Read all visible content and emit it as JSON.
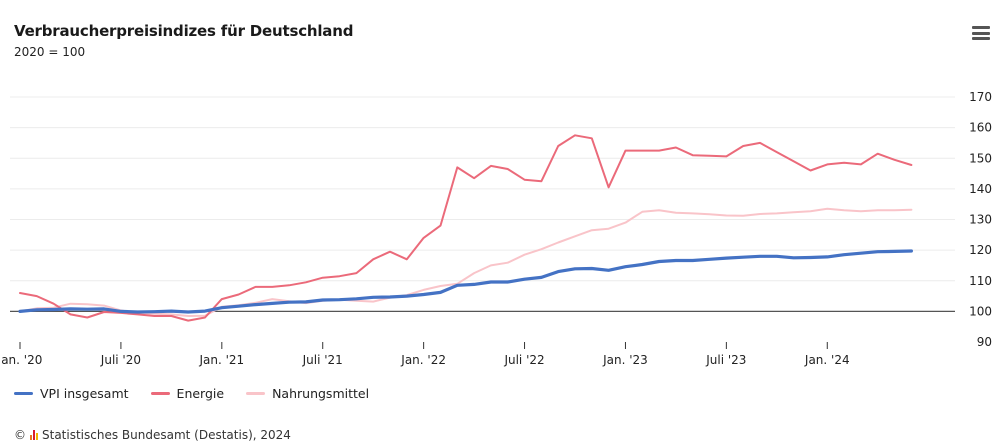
{
  "title": "Verbraucherpreisindizes für Deutschland",
  "subtitle": "2020 = 100",
  "menu_icon": "hamburger-menu-icon",
  "credits": {
    "copyright": "©",
    "logo_icon": "destatis-logo-icon",
    "text": "Statistisches Bundesamt (Destatis), 2024"
  },
  "chart_data": {
    "type": "line",
    "x_start": "2020-01",
    "x_end": "2024-08",
    "x_ticks": [
      {
        "month": "2020-01",
        "label": "Jan. '20"
      },
      {
        "month": "2020-07",
        "label": "Juli '20"
      },
      {
        "month": "2021-01",
        "label": "Jan. '21"
      },
      {
        "month": "2021-07",
        "label": "Juli '21"
      },
      {
        "month": "2022-01",
        "label": "Jan. '22"
      },
      {
        "month": "2022-07",
        "label": "Juli '22"
      },
      {
        "month": "2023-01",
        "label": "Jan. '23"
      },
      {
        "month": "2023-07",
        "label": "Juli '23"
      },
      {
        "month": "2024-01",
        "label": "Jan. '24"
      }
    ],
    "y_ticks": [
      90,
      100,
      110,
      120,
      130,
      140,
      150,
      160,
      170
    ],
    "ylim": [
      90,
      170
    ],
    "y_axis_side": "right",
    "grid": true,
    "reference_line": 100,
    "legend_position": "bottom-left",
    "series": [
      {
        "name": "VPI insgesamt",
        "color": "#4472c4",
        "values": [
          100.0,
          100.5,
          100.6,
          100.8,
          100.7,
          100.8,
          100.0,
          99.8,
          99.9,
          100.1,
          99.8,
          100.1,
          101.2,
          101.7,
          102.2,
          102.6,
          103.0,
          103.1,
          103.7,
          103.8,
          104.1,
          104.6,
          104.7,
          105.0,
          105.5,
          106.2,
          108.5,
          108.8,
          109.6,
          109.6,
          110.5,
          111.1,
          113.0,
          113.9,
          114.0,
          113.4,
          114.6,
          115.3,
          116.3,
          116.6,
          116.6,
          117.0,
          117.4,
          117.7,
          118.0,
          118.0,
          117.5,
          117.6,
          117.8,
          118.5,
          119.0,
          119.5,
          119.6,
          119.7
        ]
      },
      {
        "name": "Energie",
        "color": "#eb6a7a",
        "values": [
          106.0,
          105.0,
          102.5,
          99.0,
          98.0,
          99.8,
          99.5,
          99.0,
          98.5,
          98.5,
          97.0,
          98.0,
          104.0,
          105.5,
          108.0,
          108.0,
          108.5,
          109.5,
          111.0,
          111.5,
          112.5,
          117.0,
          119.5,
          117.0,
          124.0,
          128.0,
          147.0,
          143.5,
          147.5,
          146.5,
          143.0,
          142.5,
          154.0,
          157.5,
          156.5,
          140.5,
          152.5,
          152.5,
          152.5,
          153.5,
          151.0,
          150.8,
          150.6,
          154.0,
          155.0,
          152.0,
          149.0,
          146.0,
          148.0,
          148.5,
          148.0,
          151.5,
          149.5,
          147.8
        ]
      },
      {
        "name": "Nahrungsmittel",
        "color": "#f9c4c9",
        "values": [
          100.0,
          101.0,
          101.2,
          102.5,
          102.3,
          101.9,
          100.3,
          99.5,
          99.2,
          99.0,
          98.5,
          98.6,
          101.5,
          102.0,
          102.8,
          104.0,
          103.3,
          102.7,
          103.5,
          103.8,
          103.5,
          103.2,
          104.5,
          105.3,
          107.0,
          108.3,
          109.0,
          112.5,
          115.0,
          115.9,
          118.5,
          120.3,
          122.5,
          124.5,
          126.5,
          127.0,
          129.0,
          132.5,
          133.0,
          132.2,
          132.0,
          131.7,
          131.3,
          131.2,
          131.8,
          132.0,
          132.4,
          132.7,
          133.5,
          133.0,
          132.7,
          133.0,
          133.0,
          133.2
        ]
      }
    ]
  }
}
